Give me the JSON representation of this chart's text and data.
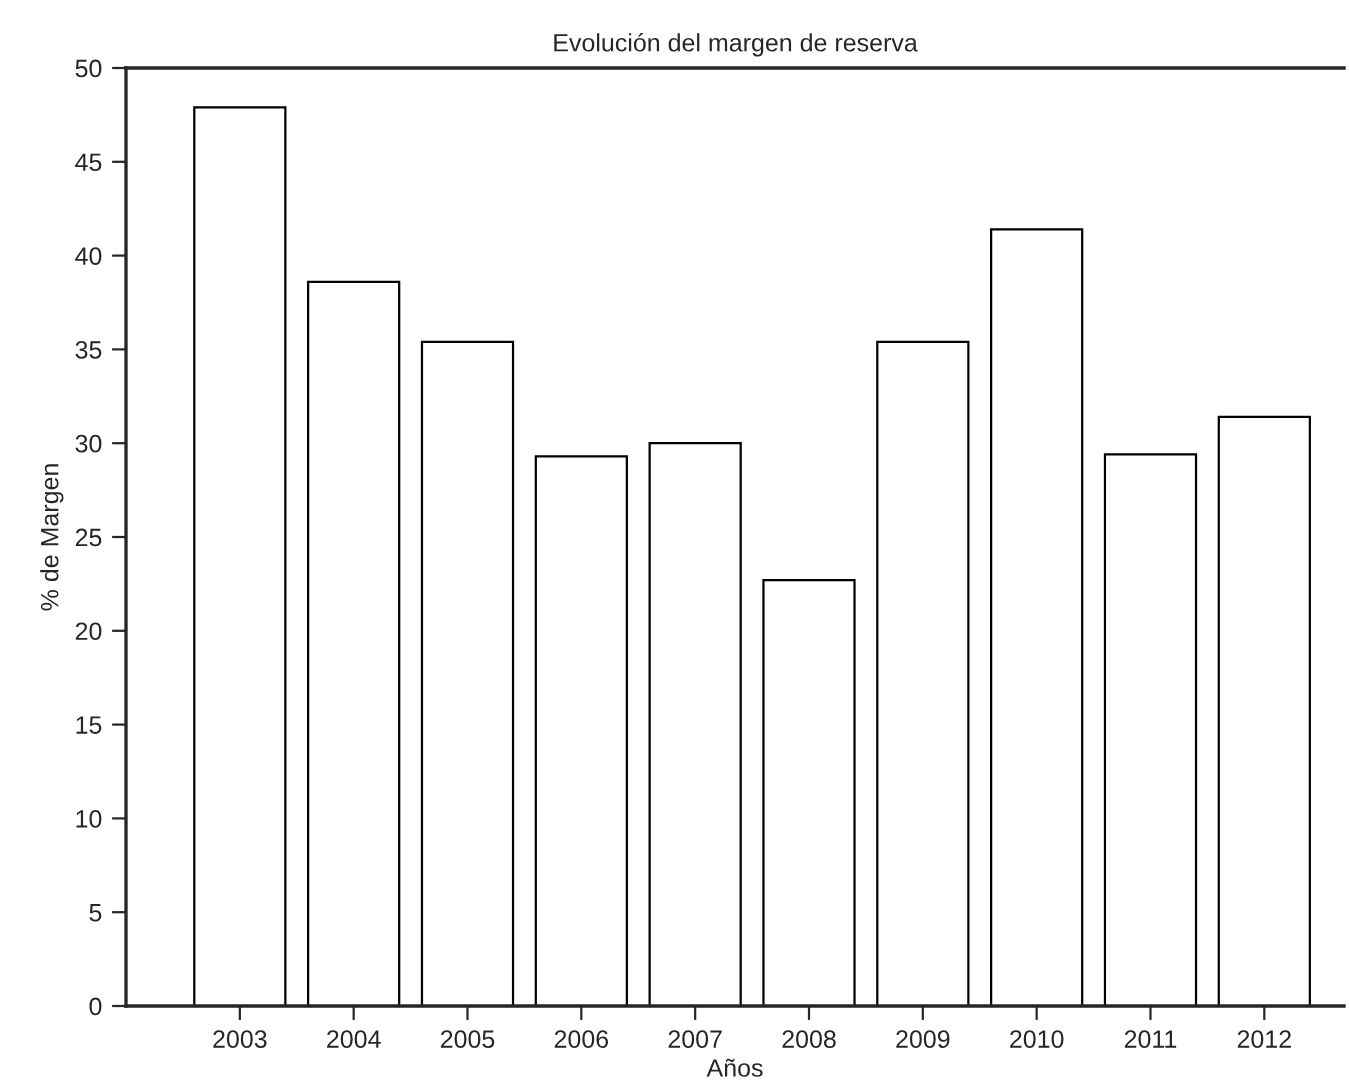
{
  "chart_data": {
    "type": "bar",
    "title": "Evolución del margen de reserva",
    "xlabel": "Años",
    "ylabel": "% de Margen",
    "categories": [
      "2003",
      "2004",
      "2005",
      "2006",
      "2007",
      "2008",
      "2009",
      "2010",
      "2011",
      "2012"
    ],
    "values": [
      47.9,
      38.6,
      35.4,
      29.3,
      30.0,
      22.7,
      35.4,
      41.4,
      29.4,
      31.4
    ],
    "color": "#ffffff",
    "ylim": [
      0,
      50
    ],
    "yticks": [
      0,
      5,
      10,
      15,
      20,
      25,
      30,
      35,
      40,
      45,
      50
    ],
    "grid": false
  }
}
